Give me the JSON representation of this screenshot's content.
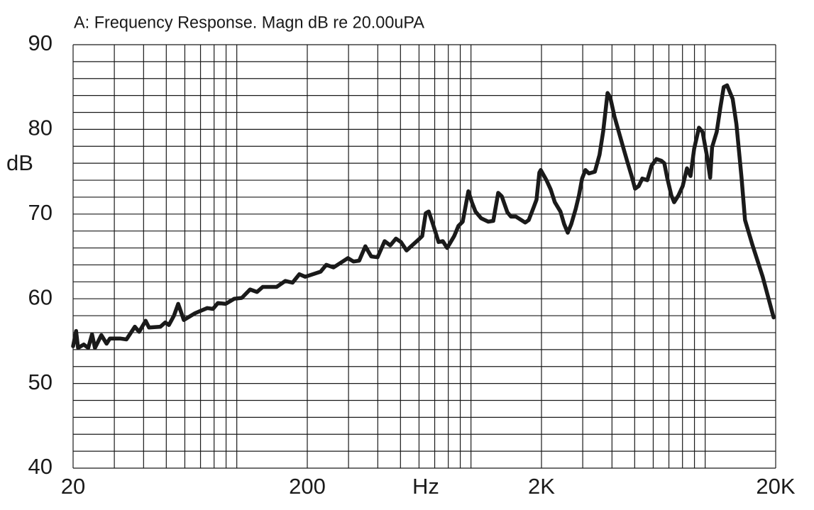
{
  "chart_data": {
    "type": "line",
    "title": "A: Frequency Response. Magn dB re 20.00uPA",
    "xlabel": "Hz",
    "ylabel": "dB",
    "xscale": "log",
    "xlim": [
      20,
      20000
    ],
    "xticks": [
      20,
      200,
      {
        "value": 2000,
        "label": "2K"
      },
      {
        "value": 20000,
        "label": "20K"
      }
    ],
    "x_grid": [
      30,
      40,
      50,
      60,
      70,
      80,
      90,
      100,
      300,
      400,
      500,
      600,
      700,
      800,
      900,
      1000,
      3000,
      4000,
      5000,
      6000,
      7000,
      8000,
      9000,
      10000
    ],
    "ylim": [
      40,
      90
    ],
    "yticks": [
      40,
      50,
      60,
      70,
      80,
      90
    ],
    "y_grid": [
      42,
      44,
      46,
      48,
      52,
      54,
      56,
      58,
      62,
      64,
      66,
      68,
      72,
      74,
      76,
      78,
      82,
      84,
      86,
      88
    ],
    "grid": true,
    "color": "#1a1a1a",
    "x": [
      20,
      20.6,
      21.0,
      22.2,
      23.2,
      24.1,
      24.8,
      26.4,
      27.8,
      28.7,
      31.9,
      33.8,
      36.7,
      38.3,
      40.8,
      42.2,
      47.2,
      49.5,
      51.3,
      53.9,
      56.2,
      59.4,
      66.4,
      74.8,
      79.1,
      83.0,
      89.6,
      97.5,
      105,
      114,
      122,
      129,
      148,
      161,
      173,
      185,
      196,
      228,
      241,
      259,
      298,
      315,
      333,
      354,
      375,
      399,
      428,
      452,
      478,
      502,
      531,
      598,
      619,
      641,
      660,
      688,
      727,
      758,
      791,
      848,
      884,
      922,
      975,
      1009,
      1045,
      1105,
      1185,
      1245,
      1307,
      1353,
      1431,
      1482,
      1556,
      1703,
      1764,
      1852,
      1905,
      1959,
      1986,
      2100,
      2190,
      2280,
      2410,
      2500,
      2590,
      2680,
      2800,
      2890,
      2980,
      3080,
      3190,
      3380,
      3540,
      3670,
      3830,
      3930,
      4100,
      4400,
      4650,
      4850,
      5020,
      5200,
      5390,
      5660,
      5900,
      6190,
      6500,
      6690,
      6880,
      7170,
      7370,
      7690,
      8020,
      8360,
      8660,
      8970,
      9410,
      9750,
      10200,
      10500,
      10700,
      11200,
      11600,
      12000,
      12400,
      13100,
      13600,
      14300,
      14800,
      15900,
      17600,
      19600
    ],
    "values": [
      54.4,
      56.2,
      54.2,
      54.6,
      54.2,
      55.8,
      54.2,
      55.7,
      54.7,
      55.3,
      55.3,
      55.2,
      56.7,
      56.1,
      57.4,
      56.6,
      56.7,
      57.2,
      56.9,
      58.0,
      59.4,
      57.5,
      58.3,
      58.9,
      58.8,
      59.5,
      59.4,
      60.0,
      60.1,
      61.1,
      60.8,
      61.4,
      61.4,
      62.1,
      61.9,
      62.9,
      62.6,
      63.2,
      64.0,
      63.7,
      64.8,
      64.4,
      64.5,
      66.2,
      65.0,
      64.9,
      66.8,
      66.3,
      67.1,
      66.7,
      65.7,
      67.0,
      67.4,
      70.1,
      70.3,
      68.8,
      66.7,
      66.8,
      66.0,
      67.4,
      68.6,
      69.1,
      72.7,
      71.4,
      70.3,
      69.5,
      69.1,
      69.2,
      72.5,
      72.1,
      70.2,
      69.7,
      69.7,
      69.0,
      69.3,
      70.8,
      71.7,
      74.9,
      75.2,
      74.0,
      72.9,
      71.4,
      70.3,
      68.8,
      67.8,
      68.8,
      70.6,
      72.2,
      74.2,
      75.2,
      74.8,
      75.0,
      77.0,
      79.8,
      84.3,
      83.8,
      81.5,
      78.5,
      76.2,
      74.5,
      73.0,
      73.3,
      74.2,
      74.0,
      75.7,
      76.5,
      76.3,
      76.0,
      74.3,
      72.2,
      71.4,
      72.2,
      73.3,
      75.4,
      74.5,
      77.7,
      80.2,
      79.7,
      76.7,
      74.3,
      77.9,
      79.7,
      82.5,
      85.0,
      85.2,
      83.6,
      80.6,
      74.3,
      69.3,
      66.4,
      62.6,
      57.8
    ]
  }
}
